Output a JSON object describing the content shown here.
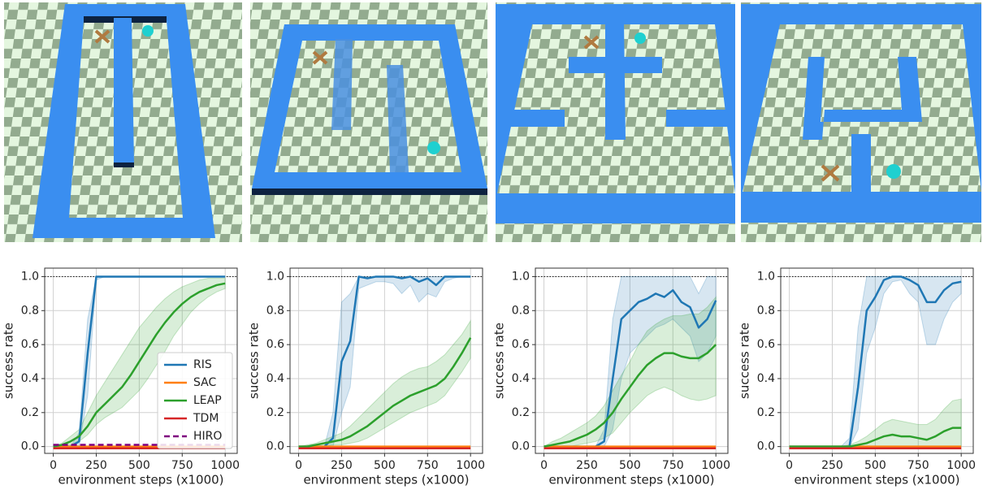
{
  "chart_data": [
    {
      "type": "line",
      "xlabel": "environment steps (x1000)",
      "ylabel": "success rate",
      "x": [
        0,
        50,
        100,
        150,
        200,
        250,
        300,
        350,
        400,
        450,
        500,
        550,
        600,
        650,
        700,
        750,
        800,
        850,
        900,
        950,
        1000
      ],
      "xlim": [
        -50,
        1070
      ],
      "ylim": [
        -0.04,
        1.05
      ],
      "xticks": [
        0,
        250,
        500,
        750,
        1000
      ],
      "yticks": [
        {
          "value": 0,
          "label": "0.0"
        },
        0.2,
        0.4,
        0.6,
        0.8,
        {
          "value": 1,
          "label": "1.0"
        }
      ],
      "grid": true,
      "reference_line": 1,
      "legend": "lower right",
      "series": [
        {
          "name": "RIS",
          "color": "#1f77b4",
          "values": [
            0,
            0,
            0,
            0.03,
            0.55,
            1,
            1,
            1,
            1,
            1,
            1,
            1,
            1,
            1,
            1,
            1,
            1,
            1,
            1,
            1,
            1
          ],
          "lower": [
            0,
            0,
            0,
            0,
            0.3,
            0.98,
            1,
            1,
            1,
            1,
            1,
            1,
            1,
            1,
            1,
            1,
            1,
            1,
            1,
            1,
            1
          ],
          "upper": [
            0,
            0,
            0,
            0.08,
            0.75,
            1,
            1,
            1,
            1,
            1,
            1,
            1,
            1,
            1,
            1,
            1,
            1,
            1,
            1,
            1,
            1
          ]
        },
        {
          "name": "SAC",
          "color": "#ff7f0e",
          "values": [
            0,
            0,
            0,
            0,
            0,
            0,
            0,
            0,
            0,
            0,
            0,
            0,
            0,
            0,
            0,
            0,
            0,
            0,
            0,
            0,
            0
          ]
        },
        {
          "name": "LEAP",
          "color": "#2ca02c",
          "values": [
            0,
            0.01,
            0.03,
            0.06,
            0.12,
            0.2,
            0.25,
            0.3,
            0.35,
            0.42,
            0.5,
            0.58,
            0.66,
            0.73,
            0.79,
            0.84,
            0.88,
            0.91,
            0.93,
            0.95,
            0.96
          ],
          "lower": [
            0,
            0,
            0.01,
            0.03,
            0.07,
            0.13,
            0.17,
            0.2,
            0.23,
            0.28,
            0.33,
            0.4,
            0.48,
            0.56,
            0.65,
            0.72,
            0.79,
            0.84,
            0.88,
            0.91,
            0.93
          ],
          "upper": [
            0,
            0.02,
            0.06,
            0.1,
            0.2,
            0.3,
            0.38,
            0.46,
            0.54,
            0.62,
            0.7,
            0.76,
            0.82,
            0.87,
            0.91,
            0.94,
            0.96,
            0.98,
            0.99,
            0.99,
            0.99
          ]
        },
        {
          "name": "TDM",
          "color": "#d62728",
          "values": [
            -0.01,
            -0.01,
            -0.01,
            -0.01,
            -0.01,
            -0.01,
            -0.01,
            -0.01,
            -0.01,
            -0.01,
            -0.01,
            -0.01,
            -0.01,
            -0.01,
            -0.01,
            -0.01,
            -0.01,
            -0.01,
            -0.01,
            -0.01,
            -0.01
          ]
        },
        {
          "name": "HIRO",
          "color": "#800080",
          "linestyle": "dashed",
          "values": [
            0.01,
            0.01,
            0.01,
            0.01,
            0.01,
            0.01,
            0.01,
            0.01,
            0.01,
            0.01,
            0.01,
            0.01,
            0.01,
            0.01,
            0.01,
            0.01,
            0.01,
            0.01,
            0.01,
            0.01,
            0.01
          ]
        }
      ]
    },
    {
      "type": "line",
      "xlabel": "environment steps (x1000)",
      "ylabel": "success rate",
      "x": [
        0,
        50,
        100,
        150,
        200,
        250,
        300,
        350,
        400,
        450,
        500,
        550,
        600,
        650,
        700,
        750,
        800,
        850,
        900,
        950,
        1000
      ],
      "xlim": [
        -50,
        1070
      ],
      "ylim": [
        -0.04,
        1.05
      ],
      "xticks": [
        0,
        250,
        500,
        750,
        1000
      ],
      "yticks": [
        {
          "value": 0,
          "label": "0.0"
        },
        0.2,
        0.4,
        0.6,
        0.8,
        {
          "value": 1,
          "label": "1.0"
        }
      ],
      "grid": true,
      "reference_line": 1,
      "series": [
        {
          "color": "#1f77b4",
          "values": [
            0,
            0,
            0,
            0,
            0.05,
            0.5,
            0.62,
            1,
            0.99,
            1,
            1,
            1,
            0.99,
            1,
            0.97,
            0.99,
            0.95,
            1,
            1,
            1,
            1
          ],
          "lower": [
            0,
            0,
            0,
            0,
            0,
            0.2,
            0.35,
            0.93,
            0.95,
            0.97,
            0.97,
            0.96,
            0.9,
            0.95,
            0.85,
            0.9,
            0.88,
            0.97,
            0.99,
            1,
            1
          ],
          "upper": [
            0,
            0,
            0,
            0,
            0.2,
            0.85,
            0.9,
            1,
            1,
            1,
            1,
            1,
            1,
            1,
            1,
            1,
            1,
            1,
            1,
            1,
            1
          ]
        },
        {
          "color": "#ff7f0e",
          "values": [
            0,
            0,
            0,
            0,
            0,
            0,
            0,
            0,
            0,
            0,
            0,
            0,
            0,
            0,
            0,
            0,
            0,
            0,
            0,
            0,
            0
          ]
        },
        {
          "color": "#2ca02c",
          "values": [
            0,
            0,
            0.01,
            0.02,
            0.03,
            0.04,
            0.06,
            0.09,
            0.12,
            0.16,
            0.2,
            0.24,
            0.27,
            0.3,
            0.32,
            0.34,
            0.36,
            0.4,
            0.47,
            0.55,
            0.64
          ],
          "lower": [
            0,
            0,
            0,
            0,
            0.01,
            0.01,
            0.02,
            0.03,
            0.05,
            0.08,
            0.11,
            0.14,
            0.17,
            0.2,
            0.22,
            0.24,
            0.26,
            0.3,
            0.37,
            0.44,
            0.52
          ],
          "upper": [
            0,
            0.01,
            0.02,
            0.04,
            0.06,
            0.08,
            0.12,
            0.17,
            0.22,
            0.27,
            0.32,
            0.37,
            0.41,
            0.44,
            0.46,
            0.47,
            0.5,
            0.54,
            0.6,
            0.66,
            0.74
          ]
        },
        {
          "color": "#d62728",
          "values": [
            -0.01,
            -0.01,
            -0.01,
            -0.01,
            -0.01,
            -0.01,
            -0.01,
            -0.01,
            -0.01,
            -0.01,
            -0.01,
            -0.01,
            -0.01,
            -0.01,
            -0.01,
            -0.01,
            -0.01,
            -0.01,
            -0.01,
            -0.01,
            -0.01
          ]
        }
      ]
    },
    {
      "type": "line",
      "xlabel": "environment steps (x1000)",
      "ylabel": "success rate",
      "x": [
        0,
        50,
        100,
        150,
        200,
        250,
        300,
        350,
        400,
        450,
        500,
        550,
        600,
        650,
        700,
        750,
        800,
        850,
        900,
        950,
        1000
      ],
      "xlim": [
        -50,
        1070
      ],
      "ylim": [
        -0.04,
        1.05
      ],
      "xticks": [
        0,
        250,
        500,
        750,
        1000
      ],
      "yticks": [
        {
          "value": 0,
          "label": "0.0"
        },
        0.2,
        0.4,
        0.6,
        0.8,
        {
          "value": 1,
          "label": "1.0"
        }
      ],
      "grid": true,
      "reference_line": 1,
      "series": [
        {
          "color": "#1f77b4",
          "values": [
            0,
            0,
            0,
            0,
            0,
            0,
            0,
            0.03,
            0.4,
            0.75,
            0.8,
            0.85,
            0.87,
            0.9,
            0.88,
            0.92,
            0.85,
            0.82,
            0.7,
            0.75,
            0.86
          ],
          "lower": [
            0,
            0,
            0,
            0,
            0,
            0,
            0,
            0,
            0.1,
            0.4,
            0.55,
            0.6,
            0.65,
            0.7,
            0.72,
            0.75,
            0.7,
            0.65,
            0.5,
            0.55,
            0.65
          ],
          "upper": [
            0,
            0,
            0,
            0,
            0,
            0,
            0,
            0.1,
            0.75,
            1,
            1,
            1,
            1,
            1,
            1,
            1,
            1,
            1,
            0.9,
            1,
            1
          ]
        },
        {
          "color": "#ff7f0e",
          "values": [
            0,
            0,
            0,
            0,
            0,
            0,
            0,
            0,
            0,
            0,
            0,
            0,
            0,
            0,
            0,
            0,
            0,
            0,
            0,
            0,
            0
          ]
        },
        {
          "color": "#2ca02c",
          "values": [
            0,
            0.01,
            0.02,
            0.03,
            0.05,
            0.07,
            0.1,
            0.14,
            0.2,
            0.28,
            0.35,
            0.42,
            0.48,
            0.52,
            0.55,
            0.55,
            0.53,
            0.52,
            0.52,
            0.55,
            0.6
          ],
          "lower": [
            0,
            0,
            0,
            0,
            0.01,
            0.02,
            0.03,
            0.05,
            0.08,
            0.14,
            0.2,
            0.25,
            0.3,
            0.33,
            0.35,
            0.33,
            0.3,
            0.28,
            0.27,
            0.28,
            0.3
          ],
          "upper": [
            0,
            0.03,
            0.05,
            0.08,
            0.11,
            0.14,
            0.18,
            0.24,
            0.33,
            0.42,
            0.5,
            0.6,
            0.68,
            0.72,
            0.75,
            0.77,
            0.77,
            0.78,
            0.78,
            0.82,
            0.88
          ]
        },
        {
          "color": "#d62728",
          "values": [
            -0.01,
            -0.01,
            -0.01,
            -0.01,
            -0.01,
            -0.01,
            -0.01,
            -0.01,
            -0.01,
            -0.01,
            -0.01,
            -0.01,
            -0.01,
            -0.01,
            -0.01,
            -0.01,
            -0.01,
            -0.01,
            -0.01,
            -0.01,
            -0.01
          ]
        }
      ]
    },
    {
      "type": "line",
      "xlabel": "environment steps (x1000)",
      "ylabel": "success rate",
      "x": [
        0,
        50,
        100,
        150,
        200,
        250,
        300,
        350,
        400,
        450,
        500,
        550,
        600,
        650,
        700,
        750,
        800,
        850,
        900,
        950,
        1000
      ],
      "xlim": [
        -50,
        1070
      ],
      "ylim": [
        -0.04,
        1.05
      ],
      "xticks": [
        0,
        250,
        500,
        750,
        1000
      ],
      "yticks": [
        {
          "value": 0,
          "label": "0.0"
        },
        0.2,
        0.4,
        0.6,
        0.8,
        {
          "value": 1,
          "label": "1.0"
        }
      ],
      "grid": true,
      "reference_line": 1,
      "series": [
        {
          "color": "#1f77b4",
          "values": [
            0,
            0,
            0,
            0,
            0,
            0,
            0,
            0,
            0.35,
            0.8,
            0.88,
            0.98,
            1,
            1,
            0.98,
            0.95,
            0.85,
            0.85,
            0.92,
            0.96,
            0.97
          ],
          "lower": [
            0,
            0,
            0,
            0,
            0,
            0,
            0,
            0,
            0.1,
            0.55,
            0.7,
            0.9,
            0.97,
            0.98,
            0.9,
            0.85,
            0.6,
            0.6,
            0.75,
            0.85,
            0.9
          ],
          "upper": [
            0,
            0,
            0,
            0,
            0,
            0,
            0,
            0.05,
            0.7,
            1,
            1,
            1,
            1,
            1,
            1,
            1,
            1,
            1,
            1,
            1,
            1
          ]
        },
        {
          "color": "#ff7f0e",
          "values": [
            0,
            0,
            0,
            0,
            0,
            0,
            0,
            0,
            0,
            0,
            0,
            0,
            0,
            0,
            0,
            0,
            0,
            0,
            0,
            0,
            0
          ]
        },
        {
          "color": "#2ca02c",
          "values": [
            0,
            0,
            0,
            0,
            0,
            0,
            0,
            0,
            0.01,
            0.02,
            0.04,
            0.06,
            0.07,
            0.06,
            0.06,
            0.05,
            0.04,
            0.06,
            0.09,
            0.11,
            0.11
          ],
          "lower": [
            0,
            0,
            0,
            0,
            0,
            0,
            0,
            0,
            0,
            0,
            0,
            0,
            0,
            0,
            0,
            0,
            0,
            0,
            0,
            0,
            0
          ],
          "upper": [
            0,
            0,
            0,
            0,
            0,
            0,
            0,
            0.01,
            0.03,
            0.06,
            0.1,
            0.14,
            0.16,
            0.15,
            0.14,
            0.13,
            0.13,
            0.16,
            0.22,
            0.27,
            0.28
          ]
        },
        {
          "color": "#d62728",
          "values": [
            -0.01,
            -0.01,
            -0.01,
            -0.01,
            -0.01,
            -0.01,
            -0.01,
            -0.01,
            -0.01,
            -0.01,
            -0.01,
            -0.01,
            -0.01,
            -0.01,
            -0.01,
            -0.01,
            -0.01,
            -0.01,
            -0.01,
            -0.01,
            -0.01
          ]
        }
      ]
    }
  ]
}
